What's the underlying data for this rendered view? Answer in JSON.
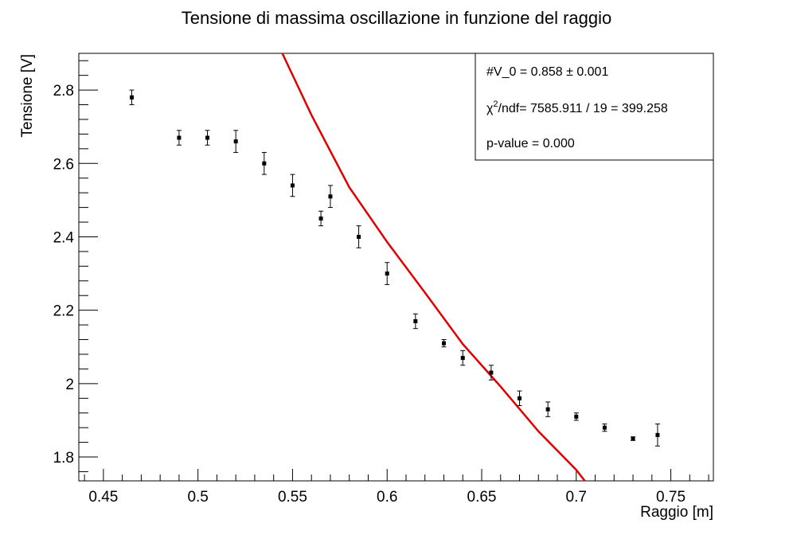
{
  "chart_data": {
    "type": "scatter",
    "title": "Tensione di massima oscillazione in funzione del raggio",
    "xlabel": "Raggio [m]",
    "ylabel": "Tensione [V]",
    "xlim": [
      0.437,
      0.7725
    ],
    "ylim": [
      1.735,
      2.9
    ],
    "x_ticks": [
      0.45,
      0.5,
      0.55,
      0.6,
      0.65,
      0.7,
      0.75
    ],
    "x_tick_labels": [
      "0.45",
      "0.5",
      "0.55",
      "0.6",
      "0.65",
      "0.7",
      "0.75"
    ],
    "y_ticks": [
      1.8,
      2.0,
      2.2,
      2.4,
      2.6,
      2.8
    ],
    "y_tick_labels": [
      "1.8",
      "2",
      "2.2",
      "2.4",
      "2.6",
      "2.8"
    ],
    "grid": false,
    "series": [
      {
        "kind": "points-with-errors",
        "color": "#000000",
        "x": [
          0.465,
          0.49,
          0.505,
          0.52,
          0.535,
          0.55,
          0.565,
          0.57,
          0.585,
          0.6,
          0.615,
          0.63,
          0.64,
          0.655,
          0.67,
          0.685,
          0.7,
          0.715,
          0.73,
          0.743
        ],
        "y": [
          2.78,
          2.67,
          2.67,
          2.66,
          2.6,
          2.54,
          2.45,
          2.51,
          2.4,
          2.3,
          2.17,
          2.11,
          2.07,
          2.03,
          1.96,
          1.93,
          1.91,
          1.88,
          1.85,
          1.86
        ],
        "err": [
          0.02,
          0.02,
          0.02,
          0.03,
          0.03,
          0.03,
          0.02,
          0.03,
          0.03,
          0.03,
          0.02,
          0.01,
          0.02,
          0.02,
          0.02,
          0.02,
          0.01,
          0.01,
          0.005,
          0.03
        ]
      },
      {
        "kind": "fit-curve",
        "color": "#e00000",
        "x": [
          0.5446,
          0.56,
          0.58,
          0.6,
          0.62,
          0.64,
          0.66,
          0.68,
          0.7,
          0.7045
        ],
        "y": [
          2.9,
          2.732,
          2.535,
          2.386,
          2.248,
          2.108,
          1.992,
          1.87,
          1.765,
          1.735
        ]
      }
    ],
    "stats_box": {
      "line1": "#V_0 = 0.858 ± 0.001",
      "line2_chi": "χ",
      "line2_sup": "2",
      "line2_rest": "/ndf= 7585.911 / 19 = 399.258",
      "line3": "p-value = 0.000"
    }
  }
}
